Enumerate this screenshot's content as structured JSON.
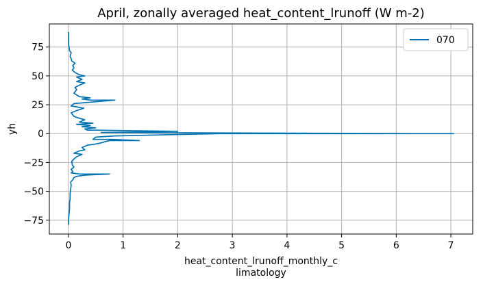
{
  "chart_data": {
    "type": "line",
    "title": "April, zonally averaged heat_content_lrunoff (W m-2)",
    "xlabel_lines": [
      "heat_content_lrunoff_monthly_c",
      "limatology"
    ],
    "ylabel": "yh",
    "xlim": [
      -0.35,
      7.4
    ],
    "ylim": [
      -87,
      95
    ],
    "xticks": [
      0,
      1,
      2,
      3,
      4,
      5,
      6,
      7
    ],
    "xtick_labels": [
      "0",
      "1",
      "2",
      "3",
      "4",
      "5",
      "6",
      "7"
    ],
    "yticks": [
      75,
      50,
      25,
      0,
      -25,
      -50,
      -75
    ],
    "ytick_labels": [
      "75",
      "50",
      "25",
      "0",
      "−25",
      "−50",
      "−75"
    ],
    "grid": true,
    "legend_position": "top-right",
    "series": [
      {
        "name": "070",
        "color": "#0072b2",
        "points": [
          [
            0.0,
            -79
          ],
          [
            0.0,
            -75
          ],
          [
            0.01,
            -70
          ],
          [
            0.02,
            -65
          ],
          [
            0.02,
            -60
          ],
          [
            0.03,
            -57
          ],
          [
            0.03,
            -52
          ],
          [
            0.04,
            -48
          ],
          [
            0.05,
            -45
          ],
          [
            0.04,
            -42
          ],
          [
            0.08,
            -40
          ],
          [
            0.1,
            -38
          ],
          [
            0.15,
            -37
          ],
          [
            0.3,
            -36
          ],
          [
            0.75,
            -35
          ],
          [
            0.2,
            -35
          ],
          [
            0.05,
            -34
          ],
          [
            0.08,
            -33
          ],
          [
            0.05,
            -31
          ],
          [
            0.1,
            -29
          ],
          [
            0.07,
            -27
          ],
          [
            0.06,
            -24
          ],
          [
            0.1,
            -22
          ],
          [
            0.15,
            -20
          ],
          [
            0.25,
            -18
          ],
          [
            0.1,
            -17
          ],
          [
            0.2,
            -15
          ],
          [
            0.3,
            -14
          ],
          [
            0.25,
            -12
          ],
          [
            0.35,
            -10
          ],
          [
            0.5,
            -9
          ],
          [
            0.6,
            -8
          ],
          [
            0.75,
            -6
          ],
          [
            1.3,
            -6
          ],
          [
            0.8,
            -5
          ],
          [
            0.45,
            -5
          ],
          [
            0.5,
            -3
          ],
          [
            0.85,
            -2
          ],
          [
            2.75,
            0
          ],
          [
            7.05,
            0
          ],
          [
            6.35,
            0
          ],
          [
            0.6,
            1
          ],
          [
            2.0,
            2
          ],
          [
            0.5,
            3
          ],
          [
            0.35,
            3
          ],
          [
            0.3,
            4
          ],
          [
            0.5,
            5
          ],
          [
            0.25,
            6
          ],
          [
            0.4,
            7
          ],
          [
            0.15,
            8
          ],
          [
            0.45,
            9
          ],
          [
            0.2,
            10
          ],
          [
            0.3,
            12
          ],
          [
            0.15,
            14
          ],
          [
            0.1,
            15
          ],
          [
            0.05,
            18
          ],
          [
            0.15,
            20
          ],
          [
            0.28,
            22
          ],
          [
            0.05,
            24
          ],
          [
            0.1,
            26
          ],
          [
            0.35,
            27
          ],
          [
            0.6,
            28
          ],
          [
            0.85,
            29
          ],
          [
            0.4,
            29
          ],
          [
            0.25,
            30
          ],
          [
            0.4,
            31
          ],
          [
            0.2,
            32
          ],
          [
            0.1,
            35
          ],
          [
            0.15,
            38
          ],
          [
            0.12,
            40
          ],
          [
            0.2,
            42
          ],
          [
            0.3,
            44
          ],
          [
            0.15,
            45
          ],
          [
            0.25,
            47
          ],
          [
            0.15,
            49
          ],
          [
            0.3,
            50
          ],
          [
            0.2,
            51
          ],
          [
            0.12,
            53
          ],
          [
            0.07,
            55
          ],
          [
            0.1,
            57
          ],
          [
            0.08,
            59
          ],
          [
            0.12,
            61
          ],
          [
            0.06,
            63
          ],
          [
            0.05,
            65
          ],
          [
            0.03,
            67
          ],
          [
            0.05,
            70
          ],
          [
            0.02,
            72
          ],
          [
            0.01,
            75
          ],
          [
            0.0,
            78
          ],
          [
            0.0,
            82
          ],
          [
            0.0,
            88
          ]
        ]
      }
    ]
  }
}
